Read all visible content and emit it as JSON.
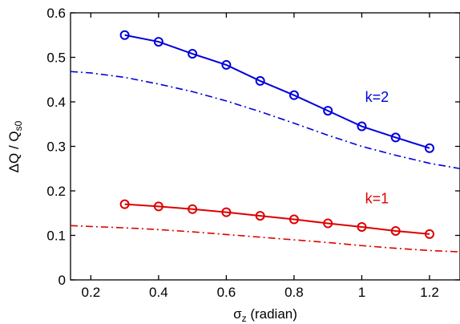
{
  "chart_data": {
    "type": "line",
    "xlabel": {
      "main": "σ",
      "sub": "z",
      "rest": " (radian)"
    },
    "ylabel": {
      "main": "ΔQ / Q",
      "sub": "s0"
    },
    "xlim": [
      0.14,
      1.29
    ],
    "ylim": [
      0,
      0.6
    ],
    "x_ticks": [
      0.2,
      0.4,
      0.6,
      0.8,
      1,
      1.2
    ],
    "x_tick_labels": [
      "0.2",
      "0.4",
      "0.6",
      "0.8",
      "1",
      "1.2"
    ],
    "y_ticks": [
      0,
      0.1,
      0.2,
      0.3,
      0.4,
      0.5,
      0.6
    ],
    "y_tick_labels": [
      "0",
      "0.1",
      "0.2",
      "0.3",
      "0.4",
      "0.5",
      "0.6"
    ],
    "grid": false,
    "series": [
      {
        "name": "k=2",
        "style": "solid-circle-markers",
        "color": "#0000dd",
        "x": [
          0.3,
          0.4,
          0.5,
          0.6,
          0.7,
          0.8,
          0.9,
          1.0,
          1.1,
          1.2
        ],
        "y": [
          0.55,
          0.535,
          0.508,
          0.483,
          0.447,
          0.415,
          0.38,
          0.345,
          0.32,
          0.296
        ]
      },
      {
        "style": "dash-dot",
        "color": "#0000dd",
        "x": [
          0.14,
          0.2,
          0.3,
          0.4,
          0.5,
          0.6,
          0.7,
          0.8,
          0.9,
          1.0,
          1.1,
          1.2,
          1.29
        ],
        "y": [
          0.468,
          0.465,
          0.455,
          0.44,
          0.423,
          0.402,
          0.378,
          0.352,
          0.325,
          0.3,
          0.28,
          0.262,
          0.25
        ]
      },
      {
        "name": "k=1",
        "style": "solid-circle-markers",
        "color": "#dd0000",
        "x": [
          0.3,
          0.4,
          0.5,
          0.6,
          0.7,
          0.8,
          0.9,
          1.0,
          1.1,
          1.2
        ],
        "y": [
          0.17,
          0.165,
          0.159,
          0.152,
          0.144,
          0.136,
          0.127,
          0.119,
          0.11,
          0.103
        ]
      },
      {
        "style": "dash-dot",
        "color": "#dd0000",
        "x": [
          0.14,
          0.2,
          0.3,
          0.4,
          0.5,
          0.6,
          0.7,
          0.8,
          0.9,
          1.0,
          1.1,
          1.2,
          1.29
        ],
        "y": [
          0.122,
          0.12,
          0.117,
          0.113,
          0.108,
          0.102,
          0.096,
          0.09,
          0.084,
          0.077,
          0.071,
          0.066,
          0.063
        ]
      }
    ],
    "annotations": [
      {
        "text": "k=2",
        "x": 1.01,
        "y": 0.4,
        "color": "#0000dd"
      },
      {
        "text": "k=1",
        "x": 1.01,
        "y": 0.172,
        "color": "#dd0000"
      }
    ]
  }
}
